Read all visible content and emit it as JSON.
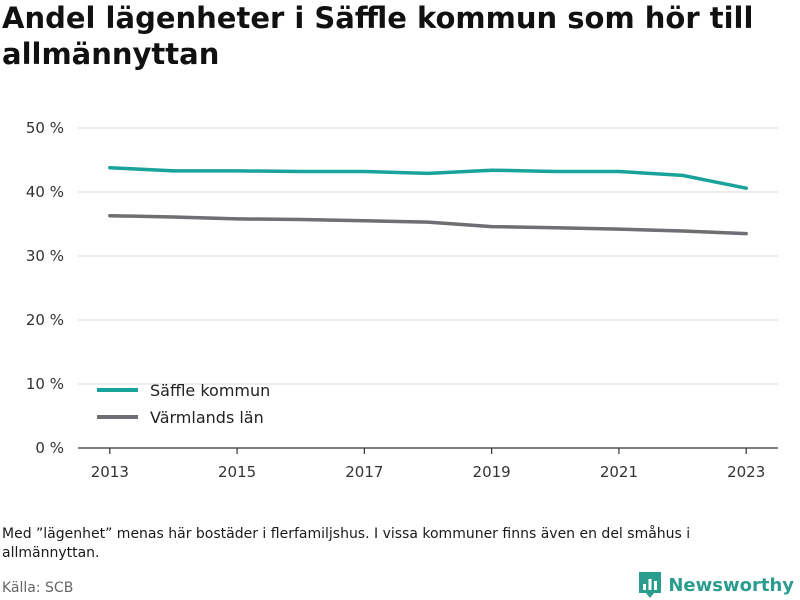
{
  "chart_data": {
    "type": "line",
    "title": "Andel lägenheter i Säffle kommun som hör till allmännyttan",
    "x": [
      2013,
      2014,
      2015,
      2016,
      2017,
      2018,
      2019,
      2020,
      2021,
      2022,
      2023
    ],
    "x_tick_labels": [
      "2013",
      "2015",
      "2017",
      "2019",
      "2021",
      "2023"
    ],
    "x_tick_values": [
      2013,
      2015,
      2017,
      2019,
      2021,
      2023
    ],
    "y_tick_labels": [
      "0 %",
      "10 %",
      "20 %",
      "30 %",
      "40 %",
      "50 %"
    ],
    "y_tick_values": [
      0,
      10,
      20,
      30,
      40,
      50
    ],
    "ylim": [
      0,
      50
    ],
    "grid": true,
    "legend_position": "bottom-left",
    "series": [
      {
        "name": "Säffle kommun",
        "color": "#1aa39a",
        "values": [
          43.8,
          43.3,
          43.3,
          43.2,
          43.2,
          42.9,
          43.4,
          43.2,
          43.2,
          42.6,
          40.6
        ]
      },
      {
        "name": "Värmlands län",
        "color": "#6e6e73",
        "values": [
          36.3,
          36.1,
          35.8,
          35.7,
          35.5,
          35.3,
          34.6,
          34.4,
          34.2,
          33.9,
          33.5
        ]
      }
    ]
  },
  "footer": {
    "note": "Med ”lägenhet” menas här bostäder i flerfamiljshus. I vissa kommuner finns även en del småhus i allmännyttan.",
    "source": "Källa: SCB",
    "brand": "Newsworthy",
    "brand_color": "#2a9d8f",
    "brand_icon": "bar-chart-logo-icon"
  }
}
